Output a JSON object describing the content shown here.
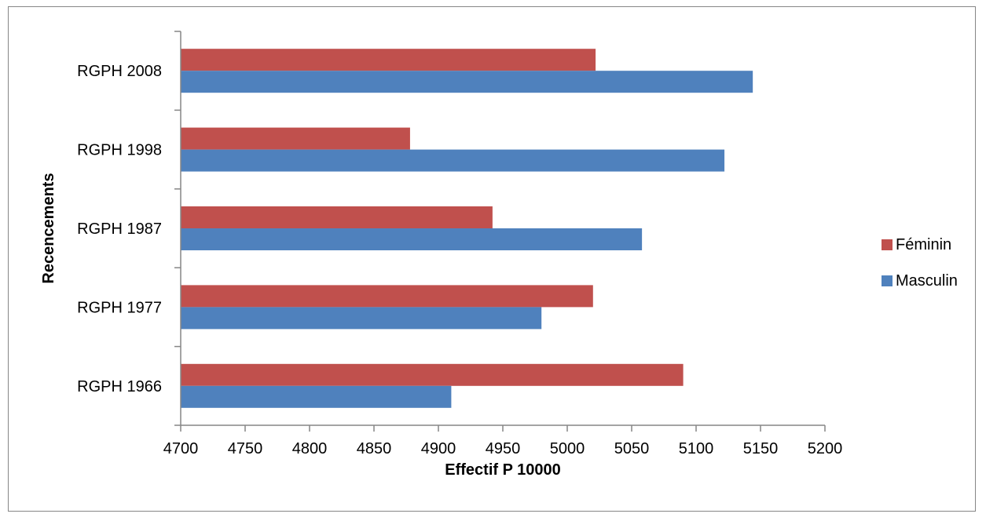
{
  "chart_data": {
    "type": "bar",
    "orientation": "horizontal",
    "categories": [
      "RGPH 1966",
      "RGPH 1977",
      "RGPH 1987",
      "RGPH 1998",
      "RGPH 2008"
    ],
    "series": [
      {
        "name": "Masculin",
        "color": "#4F81BD",
        "values": [
          4910,
          4980,
          5058,
          5122,
          5144
        ]
      },
      {
        "name": "Féminin",
        "color": "#C0504D",
        "values": [
          5090,
          5020,
          4942,
          4878,
          5022
        ]
      }
    ],
    "xlabel": "Effectif P 10000",
    "ylabel": "Recencements",
    "xlim": [
      4700,
      5200
    ],
    "x_ticks": [
      "4700",
      "4750",
      "4800",
      "4850",
      "4900",
      "4950",
      "5000",
      "5050",
      "5100",
      "5150",
      "5200"
    ],
    "grid": false,
    "legend_position": "right",
    "legend_order": [
      "Féminin",
      "Masculin"
    ]
  }
}
